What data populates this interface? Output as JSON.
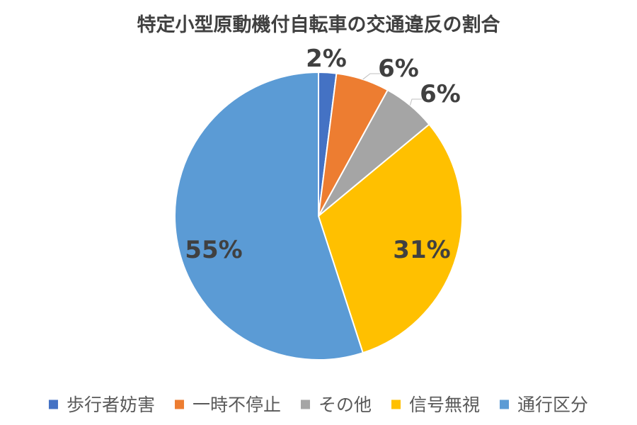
{
  "chart_data": {
    "type": "pie",
    "title": "特定小型原動機付自転車の交通違反の割合",
    "start_angle_deg": 0,
    "direction": "clockwise",
    "slices": [
      {
        "label": "歩行者妨害",
        "value": 2,
        "display": "2%",
        "color": "#4472C4"
      },
      {
        "label": "一時不停止",
        "value": 6,
        "display": "6%",
        "color": "#ED7D31"
      },
      {
        "label": "その他",
        "value": 6,
        "display": "6%",
        "color": "#A5A5A5"
      },
      {
        "label": "信号無視",
        "value": 31,
        "display": "31%",
        "color": "#FFC000"
      },
      {
        "label": "通行区分",
        "value": 55,
        "display": "55%",
        "color": "#5B9BD5"
      }
    ],
    "legend_position": "bottom"
  }
}
